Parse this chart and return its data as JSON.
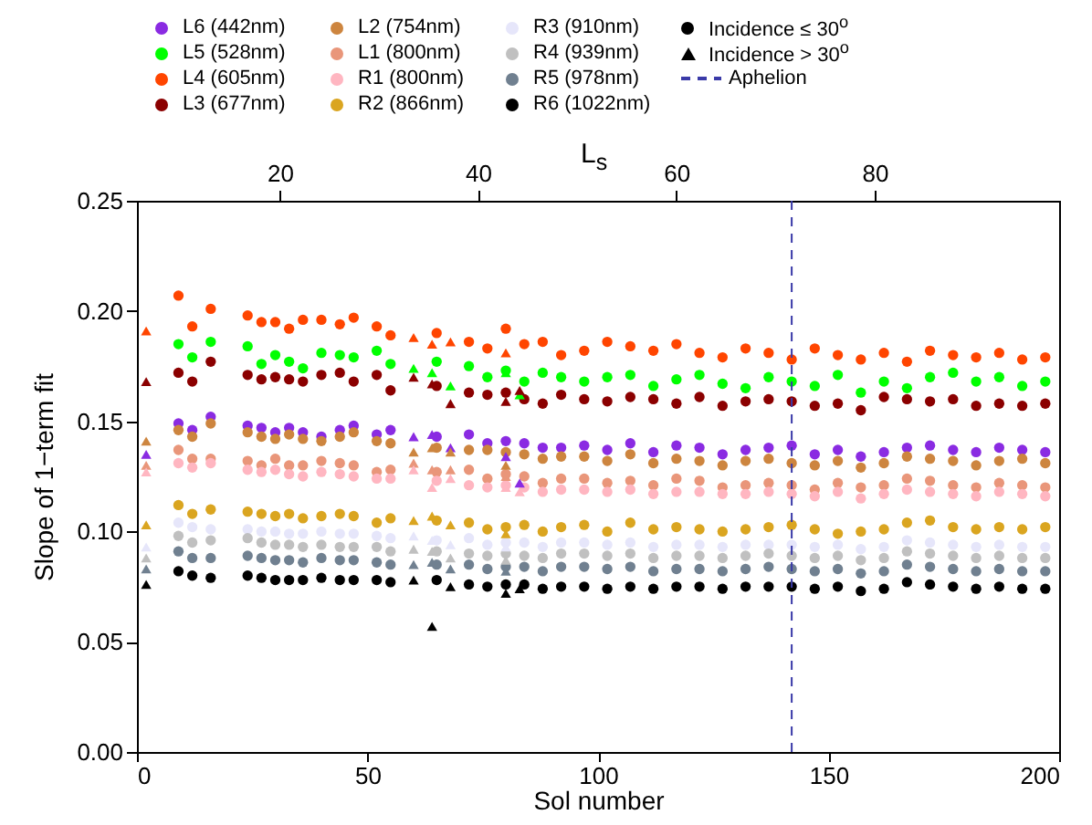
{
  "chart_data": {
    "type": "scatter",
    "xlabel": "Sol number",
    "ylabel": "Slope of 1−term fit",
    "x2label": "L$_{s}$",
    "x": [
      9,
      12,
      16,
      24,
      27,
      30,
      33,
      36,
      40,
      44,
      47,
      52,
      55,
      65,
      72,
      76,
      80,
      84,
      88,
      92,
      97,
      102,
      107,
      112,
      117,
      122,
      127,
      132,
      137,
      142,
      147,
      152,
      157,
      162,
      167,
      172,
      177,
      182,
      187,
      192,
      197
    ],
    "xlim": [
      0,
      200
    ],
    "xticks": [
      0,
      50,
      100,
      150,
      200
    ],
    "x2lim": [
      5.6,
      98.6
    ],
    "x2ticks": [
      20,
      40,
      60,
      80
    ],
    "ylim": [
      0,
      0.25
    ],
    "yticks": [
      {
        "value": 0,
        "label": "0.00"
      },
      {
        "value": 0.05,
        "label": "0.05"
      },
      {
        "value": 0.1,
        "label": "0.10"
      },
      {
        "value": 0.15,
        "label": "0.15"
      },
      {
        "value": 0.2,
        "label": "0.20"
      },
      {
        "value": 0.25,
        "label": "0.25"
      }
    ],
    "grid": false,
    "legend": "top",
    "marker": "circle",
    "annotations": [
      "Incidence ≤ 30$^{o}$",
      "Incidence > 30$^{o}$"
    ],
    "ref_lines": [
      {
        "axis": "x",
        "value": 142,
        "label": "Aphelion",
        "color": "#3a3aa8",
        "line_style": "dashed"
      }
    ],
    "series": [
      {
        "name": "L6 (442nm)",
        "color": "#8a2be2",
        "values": [
          0.149,
          0.146,
          0.152,
          0.148,
          0.147,
          0.145,
          0.147,
          0.145,
          0.143,
          0.146,
          0.148,
          0.144,
          0.146,
          0.143,
          0.144,
          0.14,
          0.141,
          0.14,
          0.138,
          0.138,
          0.139,
          0.137,
          0.14,
          0.136,
          0.139,
          0.138,
          0.135,
          0.137,
          0.138,
          0.139,
          0.135,
          0.137,
          0.134,
          0.136,
          0.138,
          0.139,
          0.137,
          0.136,
          0.138,
          0.137,
          0.136
        ]
      },
      {
        "name": "L5 (528nm)",
        "color": "#00ff00",
        "values": [
          0.185,
          0.179,
          0.186,
          0.184,
          0.176,
          0.18,
          0.177,
          0.174,
          0.181,
          0.18,
          0.179,
          0.182,
          0.176,
          0.177,
          0.175,
          0.17,
          0.173,
          0.168,
          0.172,
          0.17,
          0.168,
          0.17,
          0.171,
          0.166,
          0.169,
          0.171,
          0.167,
          0.165,
          0.17,
          0.168,
          0.166,
          0.171,
          0.163,
          0.168,
          0.165,
          0.17,
          0.172,
          0.168,
          0.17,
          0.166,
          0.168
        ]
      },
      {
        "name": "L4 (605nm)",
        "color": "#ff4500",
        "values": [
          0.207,
          0.193,
          0.201,
          0.198,
          0.195,
          0.195,
          0.192,
          0.196,
          0.196,
          0.194,
          0.197,
          0.193,
          0.189,
          0.19,
          0.186,
          0.183,
          0.192,
          0.185,
          0.186,
          0.18,
          0.182,
          0.186,
          0.184,
          0.182,
          0.185,
          0.181,
          0.179,
          0.183,
          0.181,
          0.178,
          0.183,
          0.18,
          0.178,
          0.181,
          0.177,
          0.182,
          0.18,
          0.179,
          0.181,
          0.178,
          0.179
        ]
      },
      {
        "name": "L3 (677nm)",
        "color": "#8b0000",
        "values": [
          0.172,
          0.168,
          0.177,
          0.171,
          0.169,
          0.17,
          0.169,
          0.168,
          0.171,
          0.172,
          0.168,
          0.171,
          0.164,
          0.166,
          0.163,
          0.162,
          0.163,
          0.16,
          0.158,
          0.162,
          0.16,
          0.159,
          0.161,
          0.16,
          0.158,
          0.161,
          0.157,
          0.159,
          0.16,
          0.159,
          0.157,
          0.158,
          0.155,
          0.161,
          0.16,
          0.159,
          0.16,
          0.157,
          0.158,
          0.157,
          0.158
        ]
      },
      {
        "name": "L2 (754nm)",
        "color": "#cd853f",
        "values": [
          0.146,
          0.143,
          0.149,
          0.145,
          0.143,
          0.142,
          0.144,
          0.142,
          0.141,
          0.143,
          0.145,
          0.141,
          0.14,
          0.138,
          0.137,
          0.137,
          0.136,
          0.135,
          0.133,
          0.134,
          0.134,
          0.132,
          0.135,
          0.131,
          0.133,
          0.132,
          0.13,
          0.132,
          0.133,
          0.131,
          0.13,
          0.132,
          0.129,
          0.131,
          0.134,
          0.133,
          0.132,
          0.13,
          0.132,
          0.133,
          0.131
        ]
      },
      {
        "name": "L1 (800nm)",
        "color": "#e9967a",
        "values": [
          0.137,
          0.133,
          0.133,
          0.132,
          0.13,
          0.133,
          0.13,
          0.13,
          0.132,
          0.131,
          0.13,
          0.127,
          0.128,
          0.127,
          0.128,
          0.124,
          0.126,
          0.125,
          0.122,
          0.124,
          0.124,
          0.122,
          0.123,
          0.121,
          0.124,
          0.123,
          0.12,
          0.121,
          0.122,
          0.121,
          0.119,
          0.122,
          0.12,
          0.121,
          0.124,
          0.123,
          0.121,
          0.12,
          0.122,
          0.121,
          0.12
        ]
      },
      {
        "name": "R1 (800nm)",
        "color": "#ffb6c1",
        "values": [
          0.131,
          0.129,
          0.131,
          0.128,
          0.127,
          0.128,
          0.126,
          0.125,
          0.127,
          0.126,
          0.125,
          0.124,
          0.124,
          0.123,
          0.121,
          0.12,
          0.121,
          0.12,
          0.118,
          0.119,
          0.119,
          0.118,
          0.119,
          0.117,
          0.118,
          0.118,
          0.117,
          0.117,
          0.118,
          0.117,
          0.116,
          0.118,
          0.115,
          0.117,
          0.119,
          0.118,
          0.117,
          0.116,
          0.118,
          0.117,
          0.116
        ]
      },
      {
        "name": "R2 (866nm)",
        "color": "#daa520",
        "values": [
          0.112,
          0.108,
          0.11,
          0.109,
          0.108,
          0.107,
          0.108,
          0.106,
          0.107,
          0.108,
          0.107,
          0.104,
          0.106,
          0.105,
          0.104,
          0.101,
          0.102,
          0.103,
          0.1,
          0.102,
          0.103,
          0.1,
          0.104,
          0.101,
          0.102,
          0.101,
          0.1,
          0.101,
          0.102,
          0.103,
          0.101,
          0.099,
          0.1,
          0.101,
          0.104,
          0.105,
          0.102,
          0.101,
          0.102,
          0.101,
          0.102
        ]
      },
      {
        "name": "R3 (910nm)",
        "color": "#e6e6fa",
        "values": [
          0.104,
          0.102,
          0.101,
          0.101,
          0.1,
          0.1,
          0.099,
          0.099,
          0.1,
          0.099,
          0.099,
          0.098,
          0.097,
          0.096,
          0.097,
          0.094,
          0.095,
          0.095,
          0.093,
          0.095,
          0.095,
          0.094,
          0.095,
          0.093,
          0.094,
          0.094,
          0.093,
          0.094,
          0.094,
          0.094,
          0.093,
          0.094,
          0.092,
          0.093,
          0.096,
          0.095,
          0.094,
          0.093,
          0.094,
          0.093,
          0.093
        ]
      },
      {
        "name": "R4 (939nm)",
        "color": "#c0c0c0",
        "values": [
          0.098,
          0.095,
          0.096,
          0.097,
          0.095,
          0.094,
          0.094,
          0.093,
          0.094,
          0.093,
          0.093,
          0.093,
          0.091,
          0.091,
          0.09,
          0.089,
          0.09,
          0.089,
          0.088,
          0.09,
          0.09,
          0.089,
          0.09,
          0.088,
          0.089,
          0.089,
          0.088,
          0.089,
          0.09,
          0.089,
          0.088,
          0.089,
          0.087,
          0.088,
          0.091,
          0.09,
          0.089,
          0.088,
          0.089,
          0.088,
          0.088
        ]
      },
      {
        "name": "R5 (978nm)",
        "color": "#708090",
        "values": [
          0.091,
          0.088,
          0.088,
          0.089,
          0.088,
          0.087,
          0.087,
          0.086,
          0.088,
          0.087,
          0.087,
          0.086,
          0.085,
          0.085,
          0.085,
          0.083,
          0.084,
          0.084,
          0.082,
          0.084,
          0.084,
          0.083,
          0.084,
          0.082,
          0.083,
          0.083,
          0.082,
          0.083,
          0.084,
          0.083,
          0.082,
          0.083,
          0.081,
          0.082,
          0.085,
          0.084,
          0.083,
          0.082,
          0.083,
          0.082,
          0.082
        ]
      },
      {
        "name": "R6 (1022nm)",
        "color": "#000000",
        "values": [
          0.082,
          0.08,
          0.079,
          0.08,
          0.079,
          0.078,
          0.078,
          0.078,
          0.079,
          0.078,
          0.078,
          0.078,
          0.077,
          0.078,
          0.076,
          0.075,
          0.076,
          0.076,
          0.074,
          0.075,
          0.075,
          0.074,
          0.075,
          0.074,
          0.075,
          0.075,
          0.074,
          0.075,
          0.075,
          0.075,
          0.074,
          0.075,
          0.073,
          0.074,
          0.077,
          0.076,
          0.075,
          0.074,
          0.075,
          0.074,
          0.074
        ]
      },
      {
        "color": "#8a2be2",
        "marker": "triangle",
        "x": [
          2,
          60,
          64,
          68,
          80,
          83
        ],
        "values": [
          0.135,
          0.143,
          0.144,
          0.138,
          0.134,
          0.122
        ]
      },
      {
        "color": "#00ff00",
        "marker": "triangle",
        "x": [
          60,
          64,
          68,
          80,
          83
        ],
        "values": [
          0.174,
          0.172,
          0.166,
          0.172,
          0.162
        ]
      },
      {
        "color": "#ff4500",
        "marker": "triangle",
        "x": [
          2,
          60,
          64,
          68,
          80
        ],
        "values": [
          0.191,
          0.188,
          0.185,
          0.186,
          0.181
        ]
      },
      {
        "color": "#8b0000",
        "marker": "triangle",
        "x": [
          2,
          60,
          64,
          68,
          80,
          83
        ],
        "values": [
          0.168,
          0.17,
          0.167,
          0.158,
          0.159,
          0.164
        ]
      },
      {
        "color": "#cd853f",
        "marker": "triangle",
        "x": [
          2,
          60,
          64,
          68,
          80
        ],
        "values": [
          0.141,
          0.136,
          0.138,
          0.136,
          0.13
        ]
      },
      {
        "color": "#e9967a",
        "marker": "triangle",
        "x": [
          2,
          60,
          64,
          68,
          80
        ],
        "values": [
          0.13,
          0.131,
          0.128,
          0.128,
          0.125
        ]
      },
      {
        "color": "#ffb6c1",
        "marker": "triangle",
        "x": [
          2,
          60,
          64,
          68,
          80,
          83
        ],
        "values": [
          0.127,
          0.128,
          0.12,
          0.124,
          0.12,
          0.118
        ]
      },
      {
        "color": "#daa520",
        "marker": "triangle",
        "x": [
          2,
          60,
          64,
          68,
          80
        ],
        "values": [
          0.103,
          0.105,
          0.107,
          0.103,
          0.099
        ]
      },
      {
        "color": "#e6e6fa",
        "marker": "triangle",
        "x": [
          2,
          60,
          64,
          68,
          80
        ],
        "values": [
          0.093,
          0.098,
          0.096,
          0.094,
          0.093
        ]
      },
      {
        "color": "#c0c0c0",
        "marker": "triangle",
        "x": [
          2,
          60,
          64,
          68,
          80
        ],
        "values": [
          0.088,
          0.092,
          0.091,
          0.088,
          0.087
        ]
      },
      {
        "color": "#708090",
        "marker": "triangle",
        "x": [
          2,
          60,
          64,
          68,
          80
        ],
        "values": [
          0.083,
          0.085,
          0.086,
          0.083,
          0.082
        ]
      },
      {
        "color": "#000000",
        "marker": "triangle",
        "x": [
          2,
          60,
          64,
          68,
          80,
          83
        ],
        "values": [
          0.076,
          0.078,
          0.057,
          0.075,
          0.072,
          0.074
        ]
      }
    ]
  }
}
